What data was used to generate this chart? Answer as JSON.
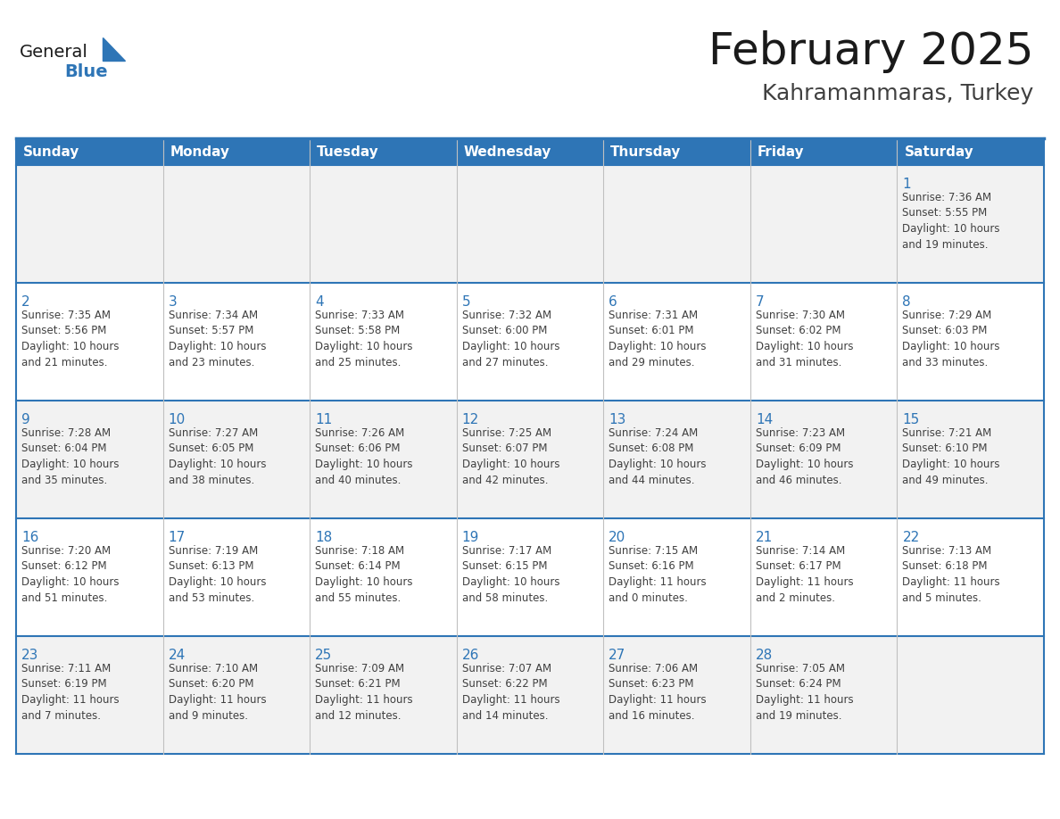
{
  "title": "February 2025",
  "subtitle": "Kahramanmaras, Turkey",
  "days_of_week": [
    "Sunday",
    "Monday",
    "Tuesday",
    "Wednesday",
    "Thursday",
    "Friday",
    "Saturday"
  ],
  "header_bg": "#2E75B6",
  "header_text": "#FFFFFF",
  "cell_bg_white": "#FFFFFF",
  "cell_bg_gray": "#F2F2F2",
  "week_border_color": "#2E75B6",
  "cell_border_color": "#C0C0C0",
  "day_num_color": "#2E75B6",
  "info_text_color": "#404040",
  "title_color": "#1a1a1a",
  "subtitle_color": "#404040",
  "logo_general_color": "#1a1a1a",
  "logo_blue_color": "#2E75B6",
  "weeks": [
    {
      "days": [
        {
          "date": null,
          "info": null
        },
        {
          "date": null,
          "info": null
        },
        {
          "date": null,
          "info": null
        },
        {
          "date": null,
          "info": null
        },
        {
          "date": null,
          "info": null
        },
        {
          "date": null,
          "info": null
        },
        {
          "date": 1,
          "info": "Sunrise: 7:36 AM\nSunset: 5:55 PM\nDaylight: 10 hours\nand 19 minutes."
        }
      ]
    },
    {
      "days": [
        {
          "date": 2,
          "info": "Sunrise: 7:35 AM\nSunset: 5:56 PM\nDaylight: 10 hours\nand 21 minutes."
        },
        {
          "date": 3,
          "info": "Sunrise: 7:34 AM\nSunset: 5:57 PM\nDaylight: 10 hours\nand 23 minutes."
        },
        {
          "date": 4,
          "info": "Sunrise: 7:33 AM\nSunset: 5:58 PM\nDaylight: 10 hours\nand 25 minutes."
        },
        {
          "date": 5,
          "info": "Sunrise: 7:32 AM\nSunset: 6:00 PM\nDaylight: 10 hours\nand 27 minutes."
        },
        {
          "date": 6,
          "info": "Sunrise: 7:31 AM\nSunset: 6:01 PM\nDaylight: 10 hours\nand 29 minutes."
        },
        {
          "date": 7,
          "info": "Sunrise: 7:30 AM\nSunset: 6:02 PM\nDaylight: 10 hours\nand 31 minutes."
        },
        {
          "date": 8,
          "info": "Sunrise: 7:29 AM\nSunset: 6:03 PM\nDaylight: 10 hours\nand 33 minutes."
        }
      ]
    },
    {
      "days": [
        {
          "date": 9,
          "info": "Sunrise: 7:28 AM\nSunset: 6:04 PM\nDaylight: 10 hours\nand 35 minutes."
        },
        {
          "date": 10,
          "info": "Sunrise: 7:27 AM\nSunset: 6:05 PM\nDaylight: 10 hours\nand 38 minutes."
        },
        {
          "date": 11,
          "info": "Sunrise: 7:26 AM\nSunset: 6:06 PM\nDaylight: 10 hours\nand 40 minutes."
        },
        {
          "date": 12,
          "info": "Sunrise: 7:25 AM\nSunset: 6:07 PM\nDaylight: 10 hours\nand 42 minutes."
        },
        {
          "date": 13,
          "info": "Sunrise: 7:24 AM\nSunset: 6:08 PM\nDaylight: 10 hours\nand 44 minutes."
        },
        {
          "date": 14,
          "info": "Sunrise: 7:23 AM\nSunset: 6:09 PM\nDaylight: 10 hours\nand 46 minutes."
        },
        {
          "date": 15,
          "info": "Sunrise: 7:21 AM\nSunset: 6:10 PM\nDaylight: 10 hours\nand 49 minutes."
        }
      ]
    },
    {
      "days": [
        {
          "date": 16,
          "info": "Sunrise: 7:20 AM\nSunset: 6:12 PM\nDaylight: 10 hours\nand 51 minutes."
        },
        {
          "date": 17,
          "info": "Sunrise: 7:19 AM\nSunset: 6:13 PM\nDaylight: 10 hours\nand 53 minutes."
        },
        {
          "date": 18,
          "info": "Sunrise: 7:18 AM\nSunset: 6:14 PM\nDaylight: 10 hours\nand 55 minutes."
        },
        {
          "date": 19,
          "info": "Sunrise: 7:17 AM\nSunset: 6:15 PM\nDaylight: 10 hours\nand 58 minutes."
        },
        {
          "date": 20,
          "info": "Sunrise: 7:15 AM\nSunset: 6:16 PM\nDaylight: 11 hours\nand 0 minutes."
        },
        {
          "date": 21,
          "info": "Sunrise: 7:14 AM\nSunset: 6:17 PM\nDaylight: 11 hours\nand 2 minutes."
        },
        {
          "date": 22,
          "info": "Sunrise: 7:13 AM\nSunset: 6:18 PM\nDaylight: 11 hours\nand 5 minutes."
        }
      ]
    },
    {
      "days": [
        {
          "date": 23,
          "info": "Sunrise: 7:11 AM\nSunset: 6:19 PM\nDaylight: 11 hours\nand 7 minutes."
        },
        {
          "date": 24,
          "info": "Sunrise: 7:10 AM\nSunset: 6:20 PM\nDaylight: 11 hours\nand 9 minutes."
        },
        {
          "date": 25,
          "info": "Sunrise: 7:09 AM\nSunset: 6:21 PM\nDaylight: 11 hours\nand 12 minutes."
        },
        {
          "date": 26,
          "info": "Sunrise: 7:07 AM\nSunset: 6:22 PM\nDaylight: 11 hours\nand 14 minutes."
        },
        {
          "date": 27,
          "info": "Sunrise: 7:06 AM\nSunset: 6:23 PM\nDaylight: 11 hours\nand 16 minutes."
        },
        {
          "date": 28,
          "info": "Sunrise: 7:05 AM\nSunset: 6:24 PM\nDaylight: 11 hours\nand 19 minutes."
        },
        {
          "date": null,
          "info": null
        }
      ]
    }
  ]
}
